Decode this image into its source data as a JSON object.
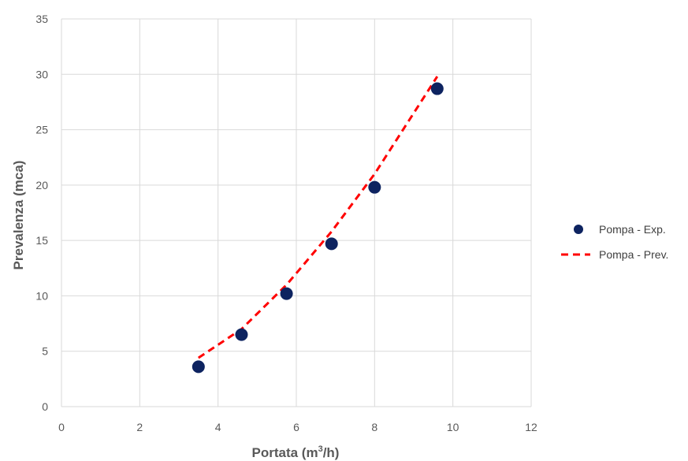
{
  "chart_data": {
    "type": "scatter",
    "xlabel_main": "Portata (m",
    "xlabel_sup": "3",
    "xlabel_end": "/h)",
    "ylabel": "Prevalenza (mca)",
    "xlim": [
      0,
      12
    ],
    "ylim": [
      0,
      35
    ],
    "xticks": [
      0,
      2,
      4,
      6,
      8,
      10,
      12
    ],
    "yticks": [
      0,
      5,
      10,
      15,
      20,
      25,
      30,
      35
    ],
    "grid": true,
    "legend_position": "right",
    "series": [
      {
        "name": "Pompa - Exp.",
        "kind": "markers",
        "color": "#0d2360",
        "points": [
          {
            "x": 3.5,
            "y": 3.6
          },
          {
            "x": 4.6,
            "y": 6.5
          },
          {
            "x": 5.75,
            "y": 10.2
          },
          {
            "x": 6.9,
            "y": 14.7
          },
          {
            "x": 8.0,
            "y": 19.8
          },
          {
            "x": 9.6,
            "y": 28.7
          }
        ]
      },
      {
        "name": "Pompa - Prev.",
        "kind": "dashed-line",
        "color": "#ff0000",
        "points": [
          {
            "x": 3.5,
            "y": 4.4
          },
          {
            "x": 4.6,
            "y": 7.0
          },
          {
            "x": 5.75,
            "y": 11.0
          },
          {
            "x": 6.9,
            "y": 15.8
          },
          {
            "x": 8.0,
            "y": 21.0
          },
          {
            "x": 9.6,
            "y": 29.8
          }
        ]
      }
    ]
  }
}
